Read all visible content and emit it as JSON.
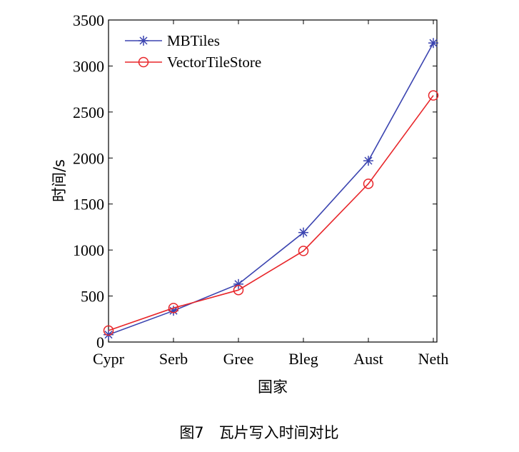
{
  "chart_data": {
    "type": "line",
    "title": "",
    "xlabel": "国家",
    "ylabel": "时间/s",
    "categories": [
      "Cypr",
      "Serb",
      "Gree",
      "Bleg",
      "Aust",
      "Neth"
    ],
    "ylim": [
      0,
      3500
    ],
    "yticks": [
      0,
      500,
      1000,
      1500,
      2000,
      2500,
      3000,
      3500
    ],
    "legend_position": "top-left",
    "grid": false,
    "series": [
      {
        "name": "MBTiles",
        "marker": "asterisk",
        "color": "#3b44b0",
        "values": [
          80,
          340,
          630,
          1190,
          1970,
          3250
        ]
      },
      {
        "name": "VectorTileStore",
        "marker": "circle",
        "color": "#e8262a",
        "values": [
          125,
          370,
          565,
          990,
          1720,
          2680
        ]
      }
    ]
  },
  "caption": "图7　瓦片写入时间对比"
}
